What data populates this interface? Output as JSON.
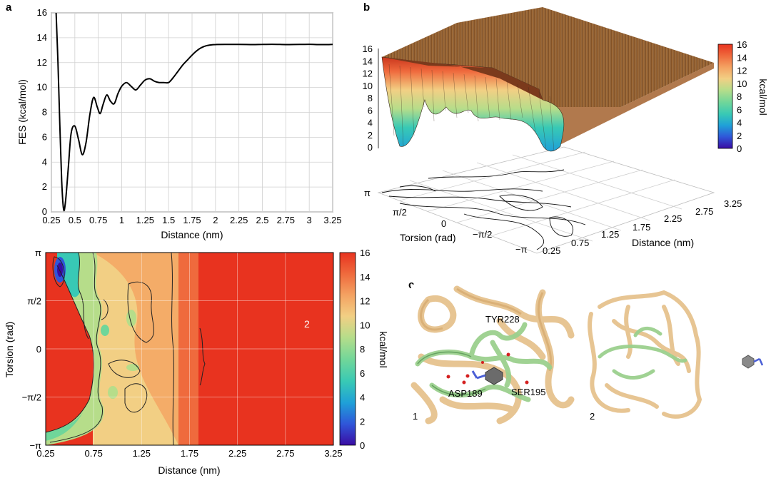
{
  "panel_labels": {
    "a": "a",
    "b": "b",
    "c": "c"
  },
  "colormap": [
    "#3a0ca3",
    "#2f56d9",
    "#1fa0d8",
    "#38c9b5",
    "#6fd69a",
    "#b6dd8a",
    "#f2cf84",
    "#f4a262",
    "#ef6a3d",
    "#e8331f"
  ],
  "chart_data": [
    {
      "id": "a-top",
      "type": "line",
      "title": "",
      "xlabel": "Distance (nm)",
      "ylabel": "FES (kcal/mol)",
      "xlim": [
        0.25,
        3.25
      ],
      "ylim": [
        0,
        16
      ],
      "xticks": [
        0.25,
        0.5,
        0.75,
        1,
        1.25,
        1.5,
        1.75,
        2,
        2.25,
        2.5,
        2.75,
        3,
        3.25
      ],
      "xtick_labels": [
        "0.25",
        "0.5",
        "0.75",
        "1",
        "1.25",
        "1.5",
        "1.75",
        "2",
        "2.25",
        "2.5",
        "2.75",
        "3",
        "3.25"
      ],
      "yticks": [
        0,
        2,
        4,
        6,
        8,
        10,
        12,
        14,
        16
      ],
      "ytick_labels": [
        "0",
        "2",
        "4",
        "6",
        "8",
        "10",
        "12",
        "14",
        "16"
      ],
      "grid": true,
      "color": "#000000",
      "x": [
        0.3,
        0.32,
        0.34,
        0.36,
        0.38,
        0.4,
        0.43,
        0.46,
        0.5,
        0.54,
        0.58,
        0.62,
        0.66,
        0.7,
        0.74,
        0.77,
        0.8,
        0.84,
        0.88,
        0.92,
        0.96,
        1.0,
        1.05,
        1.1,
        1.15,
        1.2,
        1.25,
        1.3,
        1.35,
        1.4,
        1.45,
        1.5,
        1.55,
        1.6,
        1.65,
        1.7,
        1.75,
        1.8,
        1.85,
        1.9,
        1.95,
        2.0,
        2.1,
        2.25,
        2.4,
        2.5,
        2.6,
        2.75,
        2.9,
        3.0,
        3.1,
        3.2,
        3.25
      ],
      "y": [
        16,
        12,
        7,
        2.5,
        0.2,
        0.8,
        3.5,
        6.3,
        6.9,
        5.8,
        4.6,
        5.6,
        7.8,
        9.2,
        8.4,
        7.9,
        8.6,
        9.4,
        8.9,
        8.7,
        9.5,
        10.1,
        10.4,
        10.1,
        9.8,
        10.2,
        10.6,
        10.7,
        10.5,
        10.4,
        10.4,
        10.4,
        10.8,
        11.3,
        11.8,
        12.2,
        12.6,
        12.95,
        13.2,
        13.35,
        13.42,
        13.45,
        13.46,
        13.46,
        13.45,
        13.46,
        13.47,
        13.45,
        13.46,
        13.47,
        13.45,
        13.45,
        13.46
      ]
    },
    {
      "id": "b-3d",
      "type": "surface3d",
      "title": "",
      "zticks": [
        0,
        2,
        4,
        6,
        8,
        10,
        12,
        14,
        16
      ],
      "ztick_labels": [
        "0",
        "2",
        "4",
        "6",
        "8",
        "10",
        "12",
        "14",
        "16"
      ],
      "torsion_label": "Torsion (rad)",
      "torsion_ticks": [
        "π",
        "π/2",
        "0",
        "−π/2",
        "−π"
      ],
      "distance_label": "Distance (nm)",
      "distance_ticks": [
        "0.25",
        "0.75",
        "1.25",
        "1.75",
        "2.25",
        "2.75",
        "3.25"
      ],
      "colorbar_label": "kcal/mol",
      "colorbar_ticks": [
        "0",
        "2",
        "4",
        "6",
        "8",
        "10",
        "12",
        "14",
        "16"
      ],
      "zlim": [
        0,
        16
      ]
    },
    {
      "id": "a-bottom",
      "type": "heatmap",
      "title": "",
      "xlabel": "Distance (nm)",
      "ylabel": "Torsion (rad)",
      "xlim": [
        0.25,
        3.25
      ],
      "xticks": [
        0.25,
        0.75,
        1.25,
        1.75,
        2.25,
        2.75,
        3.25
      ],
      "xtick_labels": [
        "0.25",
        "0.75",
        "1.25",
        "1.75",
        "2.25",
        "2.75",
        "3.25"
      ],
      "ytick_labels": [
        "π",
        "π/2",
        "0",
        "−π/2",
        "−π"
      ],
      "colorbar_label": "kcal/mol",
      "colorbar_ticks": [
        "0",
        "2",
        "4",
        "6",
        "8",
        "10",
        "12",
        "14",
        "16"
      ],
      "annotation": "2",
      "zlim": [
        0,
        16
      ]
    }
  ],
  "panel_c": {
    "residue_labels": [
      "TYR228",
      "ASP189",
      "SER195"
    ],
    "state_labels": [
      "1",
      "2"
    ]
  }
}
